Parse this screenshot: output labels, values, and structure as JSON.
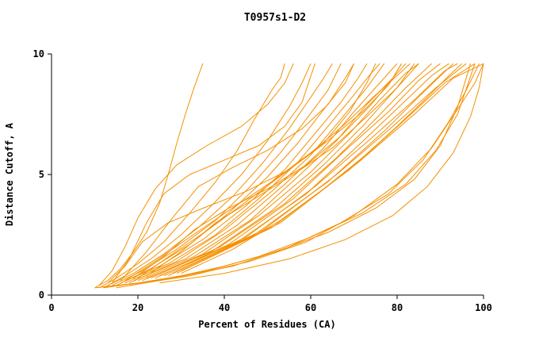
{
  "title": "T0957s1-D2",
  "colors": {
    "line": "#f59000",
    "axis": "#000000",
    "background": "#ffffff"
  },
  "chart_data": {
    "type": "line",
    "title": "T0957s1-D2",
    "xlabel": "Percent of Residues (CA)",
    "ylabel": "Distance Cutoff, A",
    "xlim": [
      0,
      100
    ],
    "ylim": [
      0,
      10
    ],
    "x_ticks": [
      0,
      20,
      40,
      60,
      80,
      100
    ],
    "y_ticks": [
      0,
      5,
      10
    ],
    "grid": false,
    "legend": "none",
    "line_color": "#f59000",
    "series": [
      [
        [
          10,
          0.3
        ],
        [
          13,
          0.6
        ],
        [
          16,
          1.1
        ],
        [
          19,
          1.8
        ],
        [
          22,
          2.6
        ],
        [
          25,
          3.8
        ],
        [
          27,
          5.0
        ],
        [
          29,
          6.3
        ],
        [
          31,
          7.5
        ],
        [
          33,
          8.6
        ],
        [
          35,
          9.6
        ]
      ],
      [
        [
          11,
          0.3
        ],
        [
          15,
          0.7
        ],
        [
          20,
          1.3
        ],
        [
          26,
          2.2
        ],
        [
          32,
          3.4
        ],
        [
          38,
          4.7
        ],
        [
          43,
          6.0
        ],
        [
          47,
          7.3
        ],
        [
          51,
          8.5
        ],
        [
          53,
          9.0
        ],
        [
          54,
          9.6
        ]
      ],
      [
        [
          12,
          0.3
        ],
        [
          17,
          0.8
        ],
        [
          23,
          1.5
        ],
        [
          30,
          2.5
        ],
        [
          37,
          3.7
        ],
        [
          44,
          5.0
        ],
        [
          50,
          6.4
        ],
        [
          55,
          7.8
        ],
        [
          58,
          8.8
        ],
        [
          60,
          9.6
        ]
      ],
      [
        [
          13,
          0.4
        ],
        [
          19,
          0.9
        ],
        [
          26,
          1.7
        ],
        [
          34,
          2.8
        ],
        [
          42,
          4.1
        ],
        [
          49,
          5.5
        ],
        [
          55,
          6.9
        ],
        [
          60,
          8.2
        ],
        [
          63,
          9.0
        ],
        [
          65,
          9.6
        ]
      ],
      [
        [
          14,
          0.4
        ],
        [
          21,
          1.0
        ],
        [
          29,
          1.9
        ],
        [
          38,
          3.1
        ],
        [
          46,
          4.5
        ],
        [
          53,
          5.9
        ],
        [
          59,
          7.3
        ],
        [
          64,
          8.5
        ],
        [
          67,
          9.6
        ]
      ],
      [
        [
          15,
          0.4
        ],
        [
          23,
          1.1
        ],
        [
          32,
          2.1
        ],
        [
          41,
          3.4
        ],
        [
          50,
          4.9
        ],
        [
          57,
          6.3
        ],
        [
          63,
          7.7
        ],
        [
          68,
          8.8
        ],
        [
          70,
          9.6
        ]
      ],
      [
        [
          16,
          0.5
        ],
        [
          25,
          1.2
        ],
        [
          35,
          2.3
        ],
        [
          45,
          3.7
        ],
        [
          54,
          5.2
        ],
        [
          61,
          6.7
        ],
        [
          67,
          8.0
        ],
        [
          71,
          9.0
        ],
        [
          73,
          9.6
        ]
      ],
      [
        [
          17,
          0.5
        ],
        [
          27,
          1.3
        ],
        [
          38,
          2.5
        ],
        [
          48,
          4.0
        ],
        [
          57,
          5.5
        ],
        [
          64,
          7.0
        ],
        [
          70,
          8.3
        ],
        [
          74,
          9.2
        ],
        [
          76,
          9.6
        ]
      ],
      [
        [
          18,
          0.5
        ],
        [
          29,
          1.4
        ],
        [
          40,
          2.7
        ],
        [
          51,
          4.3
        ],
        [
          60,
          5.8
        ],
        [
          67,
          7.3
        ],
        [
          73,
          8.6
        ],
        [
          77,
          9.6
        ]
      ],
      [
        [
          19,
          0.6
        ],
        [
          31,
          1.5
        ],
        [
          43,
          2.9
        ],
        [
          54,
          4.6
        ],
        [
          63,
          6.1
        ],
        [
          70,
          7.6
        ],
        [
          76,
          8.8
        ],
        [
          80,
          9.6
        ]
      ],
      [
        [
          20,
          0.6
        ],
        [
          33,
          1.6
        ],
        [
          46,
          3.1
        ],
        [
          57,
          4.9
        ],
        [
          66,
          6.4
        ],
        [
          73,
          7.9
        ],
        [
          79,
          9.0
        ],
        [
          82,
          9.6
        ]
      ],
      [
        [
          21,
          0.6
        ],
        [
          35,
          1.7
        ],
        [
          48,
          3.3
        ],
        [
          60,
          5.1
        ],
        [
          69,
          6.7
        ],
        [
          76,
          8.1
        ],
        [
          82,
          9.2
        ],
        [
          85,
          9.6
        ]
      ],
      [
        [
          22,
          0.7
        ],
        [
          37,
          1.8
        ],
        [
          51,
          3.5
        ],
        [
          63,
          5.4
        ],
        [
          72,
          7.0
        ],
        [
          79,
          8.4
        ],
        [
          85,
          9.6
        ]
      ],
      [
        [
          23,
          0.7
        ],
        [
          39,
          2.0
        ],
        [
          54,
          3.8
        ],
        [
          66,
          5.7
        ],
        [
          75,
          7.3
        ],
        [
          82,
          8.6
        ],
        [
          88,
          9.6
        ]
      ],
      [
        [
          24,
          0.7
        ],
        [
          41,
          2.1
        ],
        [
          56,
          4.0
        ],
        [
          68,
          6.0
        ],
        [
          78,
          7.6
        ],
        [
          85,
          8.9
        ],
        [
          90,
          9.6
        ]
      ],
      [
        [
          25,
          0.8
        ],
        [
          43,
          2.2
        ],
        [
          59,
          4.2
        ],
        [
          71,
          6.2
        ],
        [
          81,
          7.9
        ],
        [
          88,
          9.1
        ],
        [
          92,
          9.6
        ]
      ],
      [
        [
          26,
          0.8
        ],
        [
          45,
          2.4
        ],
        [
          61,
          4.5
        ],
        [
          74,
          6.5
        ],
        [
          84,
          8.1
        ],
        [
          91,
          9.3
        ],
        [
          94,
          9.6
        ]
      ],
      [
        [
          27,
          0.8
        ],
        [
          47,
          2.5
        ],
        [
          64,
          4.7
        ],
        [
          77,
          6.8
        ],
        [
          86,
          8.4
        ],
        [
          93,
          9.6
        ]
      ],
      [
        [
          28,
          0.9
        ],
        [
          49,
          2.7
        ],
        [
          66,
          5.0
        ],
        [
          79,
          7.0
        ],
        [
          89,
          8.6
        ],
        [
          96,
          9.6
        ]
      ],
      [
        [
          29,
          0.9
        ],
        [
          51,
          2.8
        ],
        [
          69,
          5.2
        ],
        [
          82,
          7.3
        ],
        [
          91,
          8.8
        ],
        [
          98,
          9.6
        ]
      ],
      [
        [
          30,
          1.0
        ],
        [
          53,
          3.0
        ],
        [
          71,
          5.5
        ],
        [
          84,
          7.5
        ],
        [
          93,
          9.0
        ],
        [
          100,
          9.6
        ]
      ],
      [
        [
          10,
          0.3
        ],
        [
          20,
          0.5
        ],
        [
          30,
          0.8
        ],
        [
          40,
          1.2
        ],
        [
          52,
          1.8
        ],
        [
          64,
          2.6
        ],
        [
          75,
          3.6
        ],
        [
          84,
          4.8
        ],
        [
          90,
          6.2
        ],
        [
          94,
          7.8
        ],
        [
          97,
          9.6
        ]
      ],
      [
        [
          12,
          0.3
        ],
        [
          24,
          0.6
        ],
        [
          36,
          1.0
        ],
        [
          48,
          1.6
        ],
        [
          60,
          2.4
        ],
        [
          72,
          3.4
        ],
        [
          82,
          4.6
        ],
        [
          89,
          6.0
        ],
        [
          94,
          7.5
        ],
        [
          98,
          9.6
        ]
      ],
      [
        [
          15,
          0.3
        ],
        [
          28,
          0.7
        ],
        [
          42,
          1.2
        ],
        [
          55,
          2.0
        ],
        [
          67,
          3.0
        ],
        [
          78,
          4.2
        ],
        [
          86,
          5.6
        ],
        [
          92,
          7.2
        ],
        [
          96,
          8.5
        ],
        [
          99,
          9.6
        ]
      ],
      [
        [
          18,
          0.4
        ],
        [
          32,
          0.8
        ],
        [
          46,
          1.4
        ],
        [
          59,
          2.2
        ],
        [
          70,
          3.3
        ],
        [
          80,
          4.6
        ],
        [
          88,
          6.1
        ],
        [
          94,
          7.7
        ],
        [
          98,
          8.8
        ],
        [
          100,
          9.6
        ]
      ],
      [
        [
          14,
          0.5
        ],
        [
          18,
          1.5
        ],
        [
          22,
          3.0
        ],
        [
          26,
          4.2
        ],
        [
          32,
          5.0
        ],
        [
          40,
          5.6
        ],
        [
          48,
          6.2
        ],
        [
          54,
          7.0
        ],
        [
          58,
          8.0
        ],
        [
          61,
          9.6
        ]
      ],
      [
        [
          16,
          0.6
        ],
        [
          22,
          1.8
        ],
        [
          28,
          3.2
        ],
        [
          34,
          4.5
        ],
        [
          42,
          5.3
        ],
        [
          50,
          6.0
        ],
        [
          58,
          6.9
        ],
        [
          64,
          7.9
        ],
        [
          68,
          9.0
        ],
        [
          70,
          9.6
        ]
      ],
      [
        [
          13,
          0.5
        ],
        [
          17,
          1.2
        ],
        [
          21,
          2.2
        ],
        [
          27,
          3.0
        ],
        [
          35,
          3.6
        ],
        [
          45,
          4.3
        ],
        [
          55,
          5.2
        ],
        [
          63,
          6.3
        ],
        [
          69,
          7.6
        ],
        [
          73,
          8.8
        ],
        [
          75,
          9.6
        ]
      ],
      [
        [
          19,
          0.7
        ],
        [
          26,
          1.6
        ],
        [
          33,
          2.7
        ],
        [
          41,
          3.6
        ],
        [
          50,
          4.4
        ],
        [
          59,
          5.4
        ],
        [
          67,
          6.6
        ],
        [
          74,
          7.9
        ],
        [
          79,
          9.0
        ],
        [
          81,
          9.6
        ]
      ],
      [
        [
          22,
          0.8
        ],
        [
          30,
          1.8
        ],
        [
          38,
          3.0
        ],
        [
          47,
          4.0
        ],
        [
          56,
          5.0
        ],
        [
          65,
          6.1
        ],
        [
          73,
          7.4
        ],
        [
          80,
          8.6
        ],
        [
          84,
          9.6
        ]
      ],
      [
        [
          11,
          0.4
        ],
        [
          14,
          1.0
        ],
        [
          17,
          2.0
        ],
        [
          20,
          3.2
        ],
        [
          24,
          4.4
        ],
        [
          29,
          5.4
        ],
        [
          36,
          6.2
        ],
        [
          44,
          7.0
        ],
        [
          50,
          7.9
        ],
        [
          54,
          8.8
        ],
        [
          56,
          9.6
        ]
      ],
      [
        [
          25,
          0.5
        ],
        [
          40,
          0.9
        ],
        [
          55,
          1.5
        ],
        [
          68,
          2.3
        ],
        [
          79,
          3.3
        ],
        [
          87,
          4.5
        ],
        [
          93,
          5.9
        ],
        [
          97,
          7.4
        ],
        [
          99,
          8.6
        ],
        [
          100,
          9.6
        ]
      ],
      [
        [
          17,
          0.6
        ],
        [
          24,
          1.4
        ],
        [
          32,
          2.4
        ],
        [
          41,
          3.5
        ],
        [
          51,
          4.7
        ],
        [
          60,
          5.9
        ],
        [
          68,
          7.1
        ],
        [
          75,
          8.3
        ],
        [
          80,
          9.1
        ],
        [
          83,
          9.6
        ]
      ],
      [
        [
          20,
          0.7
        ],
        [
          28,
          1.7
        ],
        [
          37,
          2.8
        ],
        [
          46,
          4.0
        ],
        [
          55,
          5.2
        ],
        [
          64,
          6.4
        ],
        [
          72,
          7.6
        ],
        [
          78,
          8.7
        ],
        [
          81,
          9.6
        ]
      ],
      [
        [
          30,
          0.9
        ],
        [
          42,
          1.9
        ],
        [
          53,
          3.1
        ],
        [
          63,
          4.4
        ],
        [
          72,
          5.7
        ],
        [
          80,
          7.0
        ],
        [
          87,
          8.2
        ],
        [
          92,
          9.1
        ],
        [
          95,
          9.6
        ]
      ]
    ]
  }
}
